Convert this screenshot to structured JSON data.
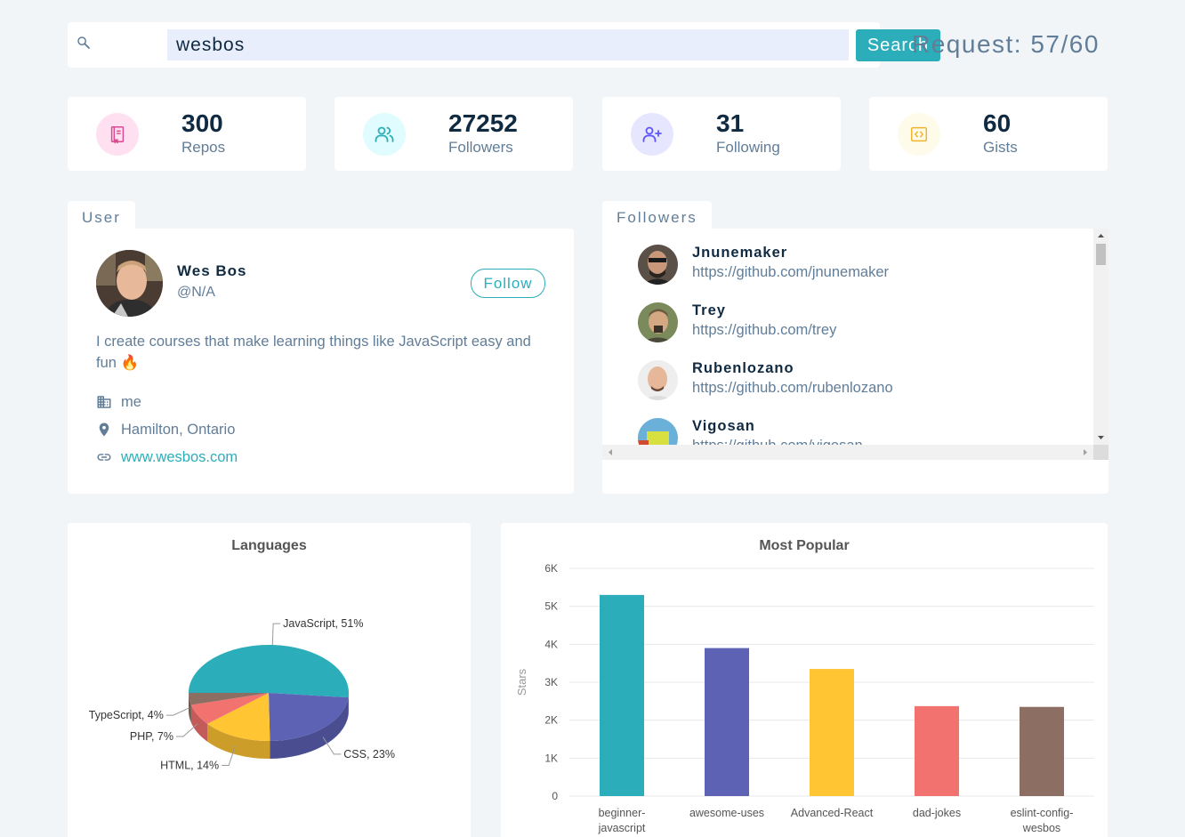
{
  "search": {
    "value": "wesbos",
    "button_label": "Search"
  },
  "requests": {
    "label": "Request: 57/60"
  },
  "stats": [
    {
      "value": "300",
      "label": "Repos",
      "icon": "repo-book-icon",
      "color": "#da4a91",
      "bg": "#ffe0f0"
    },
    {
      "value": "27252",
      "label": "Followers",
      "icon": "users-icon",
      "color": "#2caeba",
      "bg": "#e0fcff"
    },
    {
      "value": "31",
      "label": "Following",
      "icon": "user-plus-icon",
      "color": "#5d55fa",
      "bg": "#e6e6ff"
    },
    {
      "value": "60",
      "label": "Gists",
      "icon": "code-file-icon",
      "color": "#f0b429",
      "bg": "#fffbea"
    }
  ],
  "user": {
    "tab_label": "User",
    "name": "Wes Bos",
    "handle": "@N/A",
    "follow_label": "Follow",
    "bio": "I create courses that make learning things like JavaScript easy and fun 🔥",
    "company": "me",
    "location": "Hamilton, Ontario",
    "blog": "www.wesbos.com"
  },
  "followers": {
    "tab_label": "Followers",
    "items": [
      {
        "name": "Jnunemaker",
        "url": "https://github.com/jnunemaker"
      },
      {
        "name": "Trey",
        "url": "https://github.com/trey"
      },
      {
        "name": "Rubenlozano",
        "url": "https://github.com/rubenlozano"
      },
      {
        "name": "Vigosan",
        "url": "https://github.com/vigosan"
      }
    ]
  },
  "languages_chart": {
    "title": "Languages",
    "chart_data": {
      "type": "pie",
      "title": "Languages",
      "slices": [
        {
          "label": "JavaScript, 51%",
          "value": 51,
          "color": "#2caeba"
        },
        {
          "label": "CSS, 23%",
          "value": 23,
          "color": "#5d62b5"
        },
        {
          "label": "HTML, 14%",
          "value": 14,
          "color": "#ffc533"
        },
        {
          "label": "PHP, 7%",
          "value": 7,
          "color": "#f2726f"
        },
        {
          "label": "TypeScript, 4%",
          "value": 4,
          "color": "#8d6e63"
        }
      ]
    }
  },
  "popular_chart": {
    "title": "Most Popular",
    "chart_data": {
      "type": "bar",
      "title": "Most Popular",
      "ylabel": "Stars",
      "ylim": [
        0,
        6000
      ],
      "yticks": [
        "0",
        "1K",
        "2K",
        "3K",
        "4K",
        "5K",
        "6K"
      ],
      "categories": [
        "beginner-javascript",
        "awesome-uses",
        "Advanced-React",
        "dad-jokes",
        "eslint-config-wesbos"
      ],
      "category_lines": [
        [
          "beginner-",
          "javascript"
        ],
        [
          "awesome-uses"
        ],
        [
          "Advanced-React"
        ],
        [
          "dad-jokes"
        ],
        [
          "eslint-config-",
          "wesbos"
        ]
      ],
      "values": [
        5300,
        3900,
        3350,
        2370,
        2350
      ],
      "colors": [
        "#2caeba",
        "#5d62b5",
        "#ffc533",
        "#f2726f",
        "#8d6e63"
      ]
    }
  }
}
